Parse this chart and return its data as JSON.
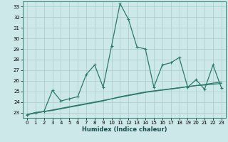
{
  "xlabel": "Humidex (Indice chaleur)",
  "bg_color": "#cce8e8",
  "grid_color": "#aacccc",
  "line_color": "#2d7a6b",
  "xlim": [
    -0.5,
    23.5
  ],
  "ylim": [
    22.5,
    33.5
  ],
  "xticks": [
    0,
    1,
    2,
    3,
    4,
    5,
    6,
    7,
    8,
    9,
    10,
    11,
    12,
    13,
    14,
    15,
    16,
    17,
    18,
    19,
    20,
    21,
    22,
    23
  ],
  "yticks": [
    23,
    24,
    25,
    26,
    27,
    28,
    29,
    30,
    31,
    32,
    33
  ],
  "main_y": [
    22.8,
    23.0,
    23.1,
    25.1,
    24.1,
    24.3,
    24.5,
    26.6,
    27.5,
    25.4,
    29.3,
    33.3,
    31.8,
    29.2,
    29.0,
    25.4,
    27.5,
    27.7,
    28.2,
    25.4,
    26.1,
    25.2,
    27.5,
    25.3
  ],
  "line2_y": [
    22.8,
    23.0,
    23.1,
    23.2,
    23.35,
    23.5,
    23.65,
    23.8,
    23.95,
    24.1,
    24.3,
    24.5,
    24.65,
    24.8,
    24.95,
    25.05,
    25.15,
    25.25,
    25.35,
    25.45,
    25.55,
    25.6,
    25.68,
    25.75
  ],
  "line3_y": [
    22.8,
    22.95,
    23.1,
    23.25,
    23.4,
    23.55,
    23.7,
    23.85,
    24.0,
    24.15,
    24.3,
    24.45,
    24.6,
    24.75,
    24.9,
    25.02,
    25.12,
    25.22,
    25.32,
    25.45,
    25.55,
    25.65,
    25.78,
    25.88
  ]
}
